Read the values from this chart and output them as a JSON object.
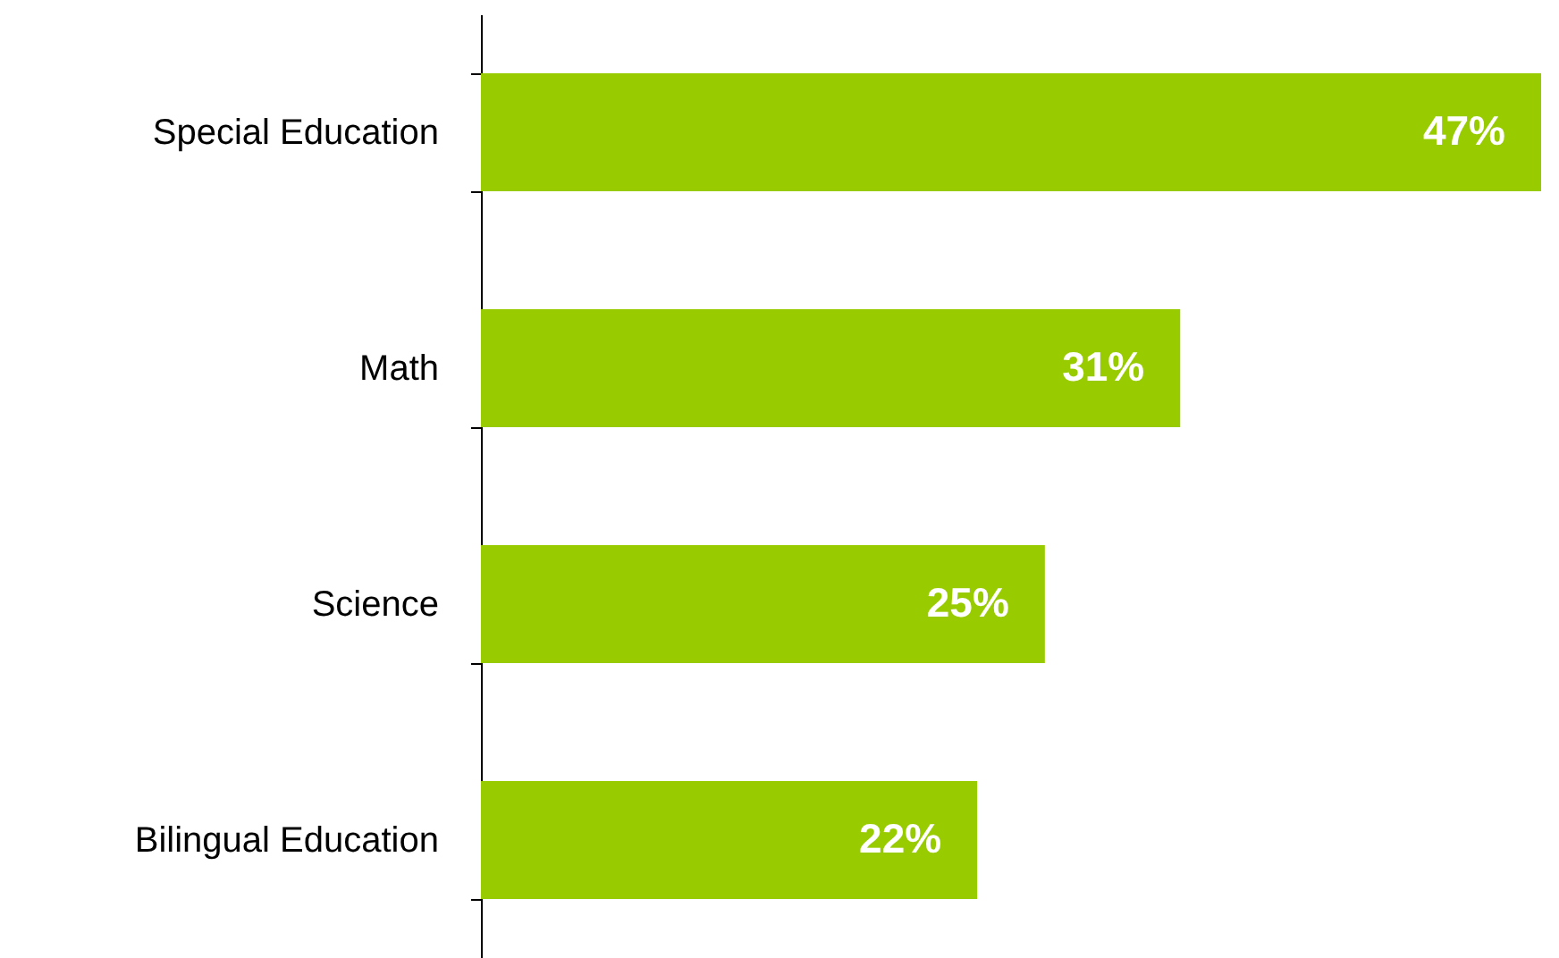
{
  "chart_data": {
    "type": "bar",
    "orientation": "horizontal",
    "categories": [
      "Special Education",
      "Math",
      "Science",
      "Bilingual Education"
    ],
    "values": [
      47,
      31,
      25,
      22
    ],
    "value_labels": [
      "47%",
      "31%",
      "25%",
      "22%"
    ],
    "color": "#99cc00"
  }
}
